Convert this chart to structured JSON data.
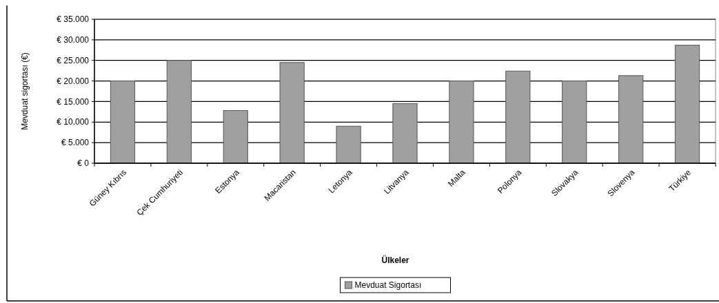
{
  "chart_data": {
    "type": "bar",
    "xlabel": "Ülkeler",
    "ylabel": "Mevduat sigortası (€)",
    "categories": [
      "Güney Kıbrıs",
      "Çek Cumhuriyeti",
      "Estonya",
      "Macaristan",
      "Letonya",
      "Litvanya",
      "Malta",
      "Polonya",
      "Slovakya",
      "Slovenya",
      "Türkiye"
    ],
    "series": [
      {
        "name": "Mevduat Sigortası",
        "color": "#a0a0a0",
        "values": [
          20000,
          25000,
          12800,
          24500,
          9000,
          14500,
          20000,
          22400,
          20000,
          21300,
          28700
        ]
      }
    ],
    "ylim": [
      0,
      35000
    ],
    "yticks": [
      {
        "value": 0,
        "label": "€ 0"
      },
      {
        "value": 5000,
        "label": "€ 5.000"
      },
      {
        "value": 10000,
        "label": "€ 10.000"
      },
      {
        "value": 15000,
        "label": "€ 15.000"
      },
      {
        "value": 20000,
        "label": "€ 20.000"
      },
      {
        "value": 25000,
        "label": "€ 25.000"
      },
      {
        "value": 30000,
        "label": "€ 30.000"
      },
      {
        "value": 35000,
        "label": "€ 35.000"
      }
    ],
    "grid": "y",
    "legend": "bottom"
  }
}
